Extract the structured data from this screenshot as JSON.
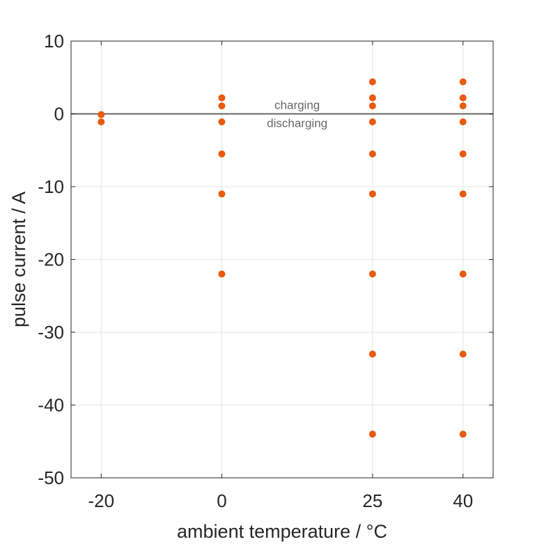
{
  "chart_data": {
    "type": "scatter",
    "title": "",
    "xlabel": "ambient temperature / °C",
    "ylabel": "pulse current / A",
    "x_ticks": [
      -20,
      0,
      25,
      40
    ],
    "y_ticks": [
      10,
      0,
      -10,
      -20,
      -30,
      -40,
      -50
    ],
    "xlim": [
      -25,
      45
    ],
    "ylim": [
      -50,
      10
    ],
    "grid": true,
    "legend": "none",
    "marker_color": "#e85a0c",
    "reference_line": {
      "y": 0,
      "color": "#666666"
    },
    "annotations": [
      {
        "text": "charging",
        "x": 12.5,
        "y": 1.1
      },
      {
        "text": "discharging",
        "x": 12.5,
        "y": -1.4
      }
    ],
    "series": [
      {
        "points": [
          {
            "x": -20,
            "y": -0.1
          },
          {
            "x": -20,
            "y": -1.1
          },
          {
            "x": 0,
            "y": 2.2
          },
          {
            "x": 0,
            "y": 1.1
          },
          {
            "x": 0,
            "y": -1.1
          },
          {
            "x": 0,
            "y": -5.5
          },
          {
            "x": 0,
            "y": -11
          },
          {
            "x": 0,
            "y": -22
          },
          {
            "x": 25,
            "y": 4.4
          },
          {
            "x": 25,
            "y": 2.2
          },
          {
            "x": 25,
            "y": 1.1
          },
          {
            "x": 25,
            "y": -1.1
          },
          {
            "x": 25,
            "y": -5.5
          },
          {
            "x": 25,
            "y": -11
          },
          {
            "x": 25,
            "y": -22
          },
          {
            "x": 25,
            "y": -33
          },
          {
            "x": 25,
            "y": -44
          },
          {
            "x": 40,
            "y": 4.4
          },
          {
            "x": 40,
            "y": 2.2
          },
          {
            "x": 40,
            "y": 1.1
          },
          {
            "x": 40,
            "y": -1.1
          },
          {
            "x": 40,
            "y": -5.5
          },
          {
            "x": 40,
            "y": -11
          },
          {
            "x": 40,
            "y": -22
          },
          {
            "x": 40,
            "y": -33
          },
          {
            "x": 40,
            "y": -44
          }
        ]
      }
    ]
  }
}
